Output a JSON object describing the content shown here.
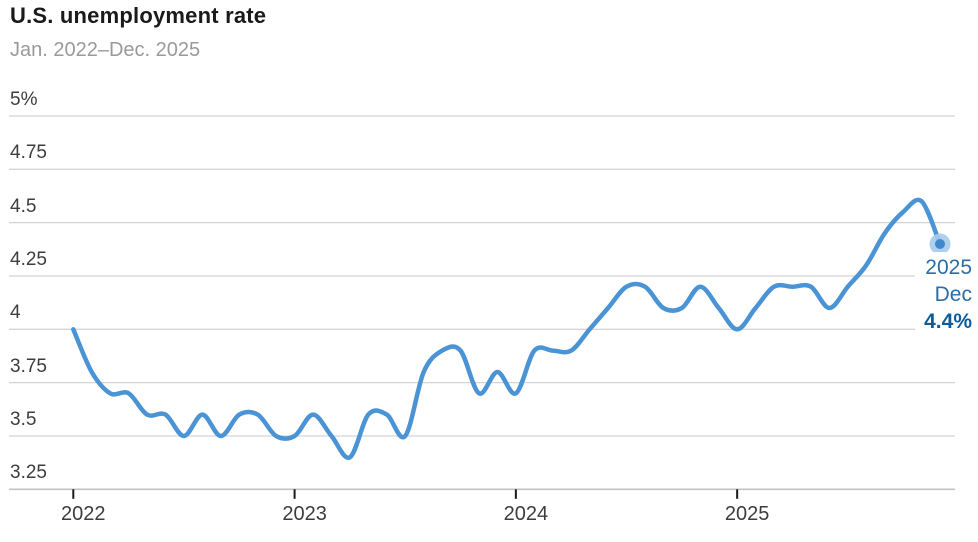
{
  "header": {
    "title": "U.S. unemployment rate",
    "subtitle": "Jan. 2022–Dec. 2025"
  },
  "annotation": {
    "year": "2025",
    "month": "Dec",
    "value": "4.4%"
  },
  "chart_data": {
    "type": "line",
    "title": "U.S. unemployment rate",
    "subtitle": "Jan. 2022–Dec. 2025",
    "unit": "percent",
    "start_month": "Jan 2022",
    "end_month": "Dec 2025",
    "series": [
      {
        "name": "U.S. unemployment rate",
        "values_2022": [
          4.0,
          3.8,
          3.7,
          3.7,
          3.6,
          3.6,
          3.5,
          3.6,
          3.5,
          3.6,
          3.6,
          3.5
        ],
        "values_2023": [
          3.5,
          3.6,
          3.5,
          3.4,
          3.6,
          3.6,
          3.5,
          3.8,
          3.9,
          3.9,
          3.7,
          3.8
        ],
        "values_2024": [
          3.7,
          3.9,
          3.9,
          3.9,
          4.0,
          4.1,
          4.2,
          4.2,
          4.1,
          4.1,
          4.2,
          4.1
        ],
        "values_2025": [
          4.0,
          4.1,
          4.2,
          4.2,
          4.2,
          4.1,
          4.2,
          4.3,
          4.45,
          4.55,
          4.6,
          4.4
        ]
      }
    ],
    "ylim": [
      3.25,
      5.0
    ],
    "yticks": [
      {
        "value": 5.0,
        "label": "5%"
      },
      {
        "value": 4.75,
        "label": "4.75"
      },
      {
        "value": 4.5,
        "label": "4.5"
      },
      {
        "value": 4.25,
        "label": "4.25"
      },
      {
        "value": 4.0,
        "label": "4"
      },
      {
        "value": 3.75,
        "label": "3.75"
      },
      {
        "value": 3.5,
        "label": "3.5"
      },
      {
        "value": 3.25,
        "label": "3.25"
      }
    ],
    "xticks": [
      {
        "label": "2022",
        "month_index": 0
      },
      {
        "label": "2023",
        "month_index": 12
      },
      {
        "label": "2024",
        "month_index": 24
      },
      {
        "label": "2025",
        "month_index": 36
      }
    ],
    "grid": "horizontal",
    "legend": "none",
    "colors": {
      "line": "#4a93d5",
      "end_dot_halo": "#a5cbeb",
      "end_dot_core": "#4189cd",
      "annotation_text": "#2a6da9",
      "annotation_value": "#0b5d9b",
      "gridline": "#d4d4d4",
      "axis_line": "#c2c2c2",
      "tick_mark": "#1a1a1a",
      "axis_text": "#3d3d3d",
      "title_text": "#1a1a1a",
      "subtitle_text": "#9a9a9a"
    },
    "end_label": {
      "year": "2025",
      "month": "Dec",
      "value": "4.4%"
    }
  }
}
